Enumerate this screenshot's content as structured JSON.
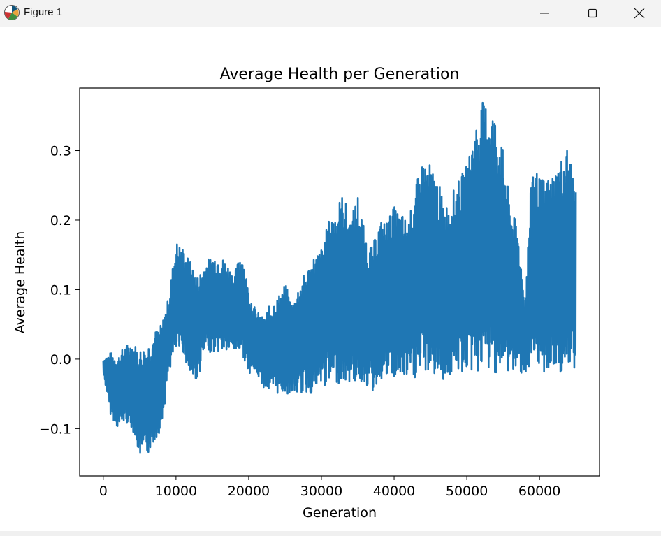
{
  "window": {
    "title": "Figure 1",
    "icon": "matplotlib-icon",
    "controls": [
      "minimize-icon",
      "maximize-icon",
      "close-icon"
    ]
  },
  "chart_data": {
    "type": "line",
    "title": "Average Health per Generation",
    "xlabel": "Generation",
    "ylabel": "Average Health",
    "xlim": [
      -3250,
      68250
    ],
    "ylim": [
      -0.168,
      0.39
    ],
    "xticks": [
      0,
      10000,
      20000,
      30000,
      40000,
      50000,
      60000
    ],
    "xtick_labels": [
      "0",
      "10000",
      "20000",
      "30000",
      "40000",
      "50000",
      "60000"
    ],
    "yticks": [
      -0.1,
      0.0,
      0.1,
      0.2,
      0.3
    ],
    "ytick_labels": [
      "−0.1",
      "0.0",
      "0.1",
      "0.2",
      "0.3"
    ],
    "grid": false,
    "series": [
      {
        "name": "Average Health",
        "color": "#1f77b4",
        "envelope_x": [
          0,
          1000,
          2000,
          3000,
          4000,
          5000,
          6000,
          7000,
          8000,
          9000,
          10000,
          11000,
          12000,
          13000,
          14000,
          15000,
          16000,
          17000,
          18000,
          19000,
          20000,
          21000,
          22000,
          23000,
          24000,
          25000,
          26000,
          27000,
          28000,
          29000,
          30000,
          31000,
          32000,
          33000,
          34000,
          35000,
          36000,
          37000,
          38000,
          39000,
          40000,
          41000,
          42000,
          43000,
          44000,
          45000,
          46000,
          47000,
          48000,
          49000,
          50000,
          51000,
          52000,
          53000,
          54000,
          55000,
          56000,
          57000,
          58000,
          59000,
          60000,
          61000,
          62000,
          63000,
          64000,
          65000
        ],
        "envelope_max": [
          0.0,
          0.01,
          0.005,
          0.02,
          0.025,
          0.015,
          0.02,
          0.04,
          0.05,
          0.09,
          0.17,
          0.16,
          0.14,
          0.12,
          0.14,
          0.15,
          0.15,
          0.14,
          0.12,
          0.16,
          0.1,
          0.07,
          0.06,
          0.08,
          0.09,
          0.11,
          0.08,
          0.11,
          0.13,
          0.15,
          0.16,
          0.2,
          0.22,
          0.24,
          0.2,
          0.24,
          0.18,
          0.16,
          0.2,
          0.2,
          0.22,
          0.21,
          0.2,
          0.25,
          0.29,
          0.28,
          0.26,
          0.22,
          0.24,
          0.26,
          0.28,
          0.33,
          0.37,
          0.37,
          0.35,
          0.3,
          0.22,
          0.19,
          0.08,
          0.29,
          0.26,
          0.26,
          0.27,
          0.29,
          0.31,
          0.24
        ],
        "envelope_min": [
          -0.02,
          -0.08,
          -0.1,
          -0.09,
          -0.1,
          -0.14,
          -0.14,
          -0.12,
          -0.1,
          -0.02,
          0.01,
          0.01,
          -0.03,
          -0.03,
          0.01,
          0.01,
          0.01,
          0.01,
          0.01,
          0.01,
          -0.02,
          -0.02,
          -0.04,
          -0.05,
          -0.05,
          -0.05,
          -0.05,
          -0.05,
          -0.05,
          -0.05,
          -0.04,
          -0.04,
          -0.035,
          -0.035,
          -0.035,
          -0.035,
          -0.035,
          -0.05,
          -0.03,
          -0.03,
          -0.03,
          -0.03,
          -0.03,
          -0.03,
          -0.02,
          -0.02,
          -0.03,
          -0.03,
          -0.025,
          -0.02,
          -0.02,
          -0.02,
          -0.02,
          -0.02,
          -0.02,
          -0.02,
          -0.02,
          -0.02,
          -0.02,
          -0.02,
          -0.02,
          -0.02,
          -0.02,
          -0.02,
          -0.02,
          -0.02
        ]
      }
    ]
  }
}
